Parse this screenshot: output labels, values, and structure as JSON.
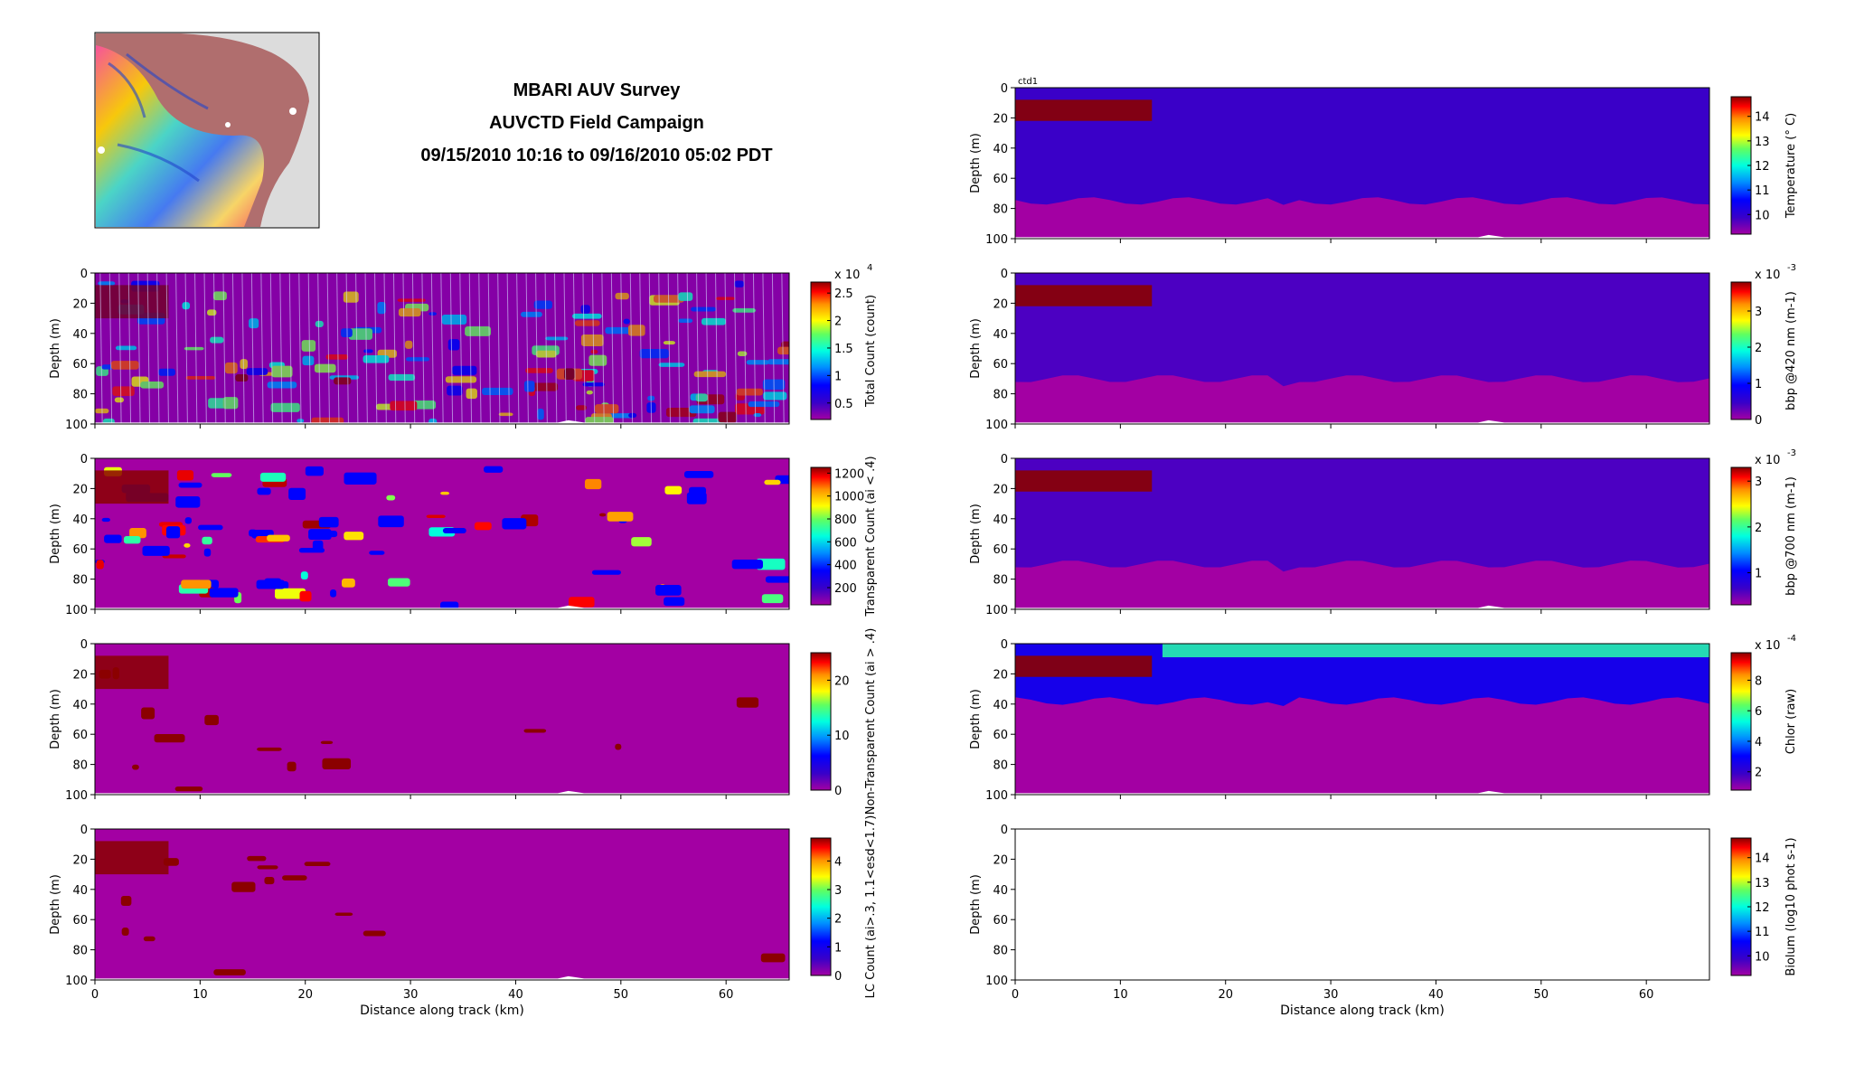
{
  "header": {
    "title": "MBARI AUV Survey",
    "subtitle": "AUVCTD Field Campaign",
    "time_range": "09/15/2010 10:16 to 09/16/2010 05:02 PDT"
  },
  "inset_map": {
    "description_icon": "bathymetry-map-icon"
  },
  "shared_axes": {
    "depth_label": "Depth (m)",
    "distance_label": "Distance along track (km)",
    "depth_ticks": [
      0,
      20,
      40,
      60,
      80,
      100
    ],
    "distance_ticks": [
      0,
      10,
      20,
      30,
      40,
      50,
      60
    ],
    "xlim": [
      0,
      66
    ],
    "ylim": [
      100,
      0
    ]
  },
  "colors": {
    "ocean_purple": "#a300a3",
    "deep_red": "#8b0000"
  },
  "chart_data": [
    {
      "id": "total-count",
      "type": "heatmap",
      "column": "left",
      "row": 0,
      "colorbar_label": "Total Count (count)",
      "colorbar_exponent": "x 10",
      "colorbar_exponent_power": "4",
      "colorbar_ticks": [
        "0.5",
        "1",
        "1.5",
        "2",
        "2.5"
      ],
      "colorbar_range": [
        0.2,
        2.7
      ]
    },
    {
      "id": "transparent-count",
      "type": "heatmap",
      "column": "left",
      "row": 1,
      "colorbar_label": "Transparent Count (ai < .4)",
      "colorbar_ticks": [
        "200",
        "400",
        "600",
        "800",
        "1000",
        "1200"
      ],
      "colorbar_range": [
        50,
        1250
      ]
    },
    {
      "id": "non-transparent-count",
      "type": "heatmap",
      "column": "left",
      "row": 2,
      "colorbar_label": "Non-Transparent Count (ai > .4)",
      "colorbar_ticks": [
        "0",
        "10",
        "20"
      ],
      "colorbar_range": [
        0,
        25
      ]
    },
    {
      "id": "lc-count",
      "type": "heatmap",
      "column": "left",
      "row": 3,
      "colorbar_label": "LC Count (ai>.3, 1.1<esd<1.7)",
      "colorbar_ticks": [
        "0",
        "1",
        "2",
        "3",
        "4"
      ],
      "colorbar_range": [
        0,
        4.8
      ]
    },
    {
      "id": "temperature",
      "type": "heatmap",
      "column": "right",
      "row": -1,
      "panel_label": "ctd1",
      "colorbar_label": "Temperature (° C)",
      "colorbar_ticks": [
        "10",
        "11",
        "12",
        "13",
        "14"
      ],
      "colorbar_range": [
        9.2,
        14.8
      ]
    },
    {
      "id": "bbp420",
      "type": "heatmap",
      "column": "right",
      "row": 0,
      "colorbar_label": "bbp @420 nm (m-1)",
      "colorbar_exponent": "x 10",
      "colorbar_exponent_power": "-3",
      "colorbar_ticks": [
        "0",
        "1",
        "2",
        "3"
      ],
      "colorbar_range": [
        0,
        3.8
      ]
    },
    {
      "id": "bbp700",
      "type": "heatmap",
      "column": "right",
      "row": 1,
      "colorbar_label": "bbp @700 nm (m-1)",
      "colorbar_exponent": "x 10",
      "colorbar_exponent_power": "-3",
      "colorbar_ticks": [
        "1",
        "2",
        "3"
      ],
      "colorbar_range": [
        0.3,
        3.3
      ]
    },
    {
      "id": "chlor",
      "type": "heatmap",
      "column": "right",
      "row": 2,
      "colorbar_label": "Chlor (raw)",
      "colorbar_exponent": "x 10",
      "colorbar_exponent_power": "-4",
      "colorbar_ticks": [
        "2",
        "4",
        "6",
        "8"
      ],
      "colorbar_range": [
        0.8,
        9.8
      ]
    },
    {
      "id": "biolum",
      "type": "heatmap",
      "column": "right",
      "row": 3,
      "colorbar_label": "Biolum (log10 phot s-1)",
      "colorbar_ticks": [
        "10",
        "11",
        "12",
        "13",
        "14"
      ],
      "colorbar_range": [
        9.2,
        14.8
      ],
      "empty": true
    }
  ]
}
